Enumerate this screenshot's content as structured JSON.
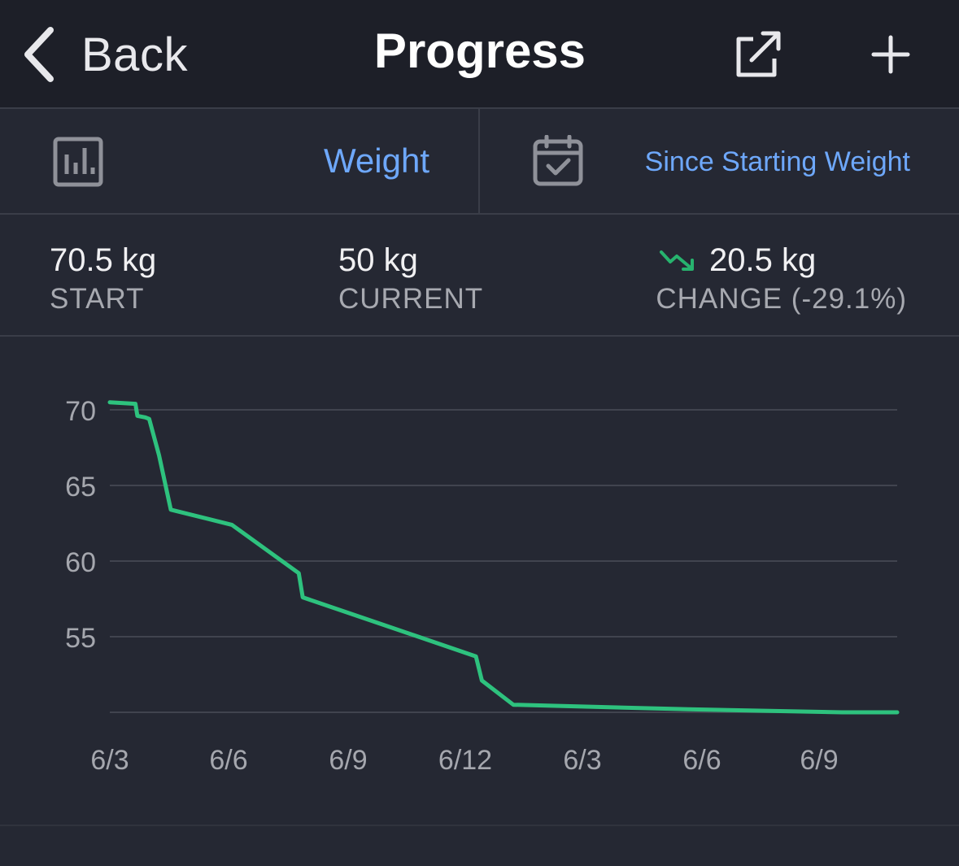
{
  "navbar": {
    "back_label": "Back",
    "title": "Progress",
    "back_icon": "chevron-left-icon",
    "share_icon": "share-icon",
    "add_icon": "plus-icon"
  },
  "selectors": {
    "metric": {
      "icon": "bar-chart-icon",
      "label": "Weight"
    },
    "range": {
      "icon": "calendar-check-icon",
      "label": "Since Starting Weight"
    }
  },
  "stats": {
    "start": {
      "value": "70.5 kg",
      "label": "START"
    },
    "current": {
      "value": "50 kg",
      "label": "CURRENT"
    },
    "change": {
      "value": "20.5 kg",
      "label": "CHANGE (-29.1%)",
      "trend_icon": "trend-down-icon"
    }
  },
  "colors": {
    "accent": "#6ea8fb",
    "line": "#2ec27e",
    "trend_down": "#27b36e",
    "background": "#252833",
    "navbar": "#1d1f28"
  },
  "chart_data": {
    "type": "line",
    "categories": [
      "6/3",
      "6/6",
      "6/9",
      "6/12",
      "6/3",
      "6/6",
      "6/9"
    ],
    "y_ticks": [
      70,
      65,
      60,
      55
    ],
    "ylim": [
      50,
      70.6
    ],
    "xlim": [
      0,
      20
    ],
    "grid": true,
    "series": [
      {
        "color": "#2ec27e",
        "x": [
          0,
          0.65,
          0.7,
          0.9,
          1.0,
          1.25,
          1.55,
          3.1,
          4.8,
          4.9,
          9.3,
          9.45,
          10.25,
          14.7,
          18.6,
          20
        ],
        "values": [
          70.5,
          70.4,
          69.6,
          69.5,
          69.4,
          67.0,
          63.4,
          62.4,
          59.2,
          57.6,
          53.7,
          52.1,
          50.5,
          50.2,
          50.0,
          50.0
        ]
      }
    ]
  }
}
